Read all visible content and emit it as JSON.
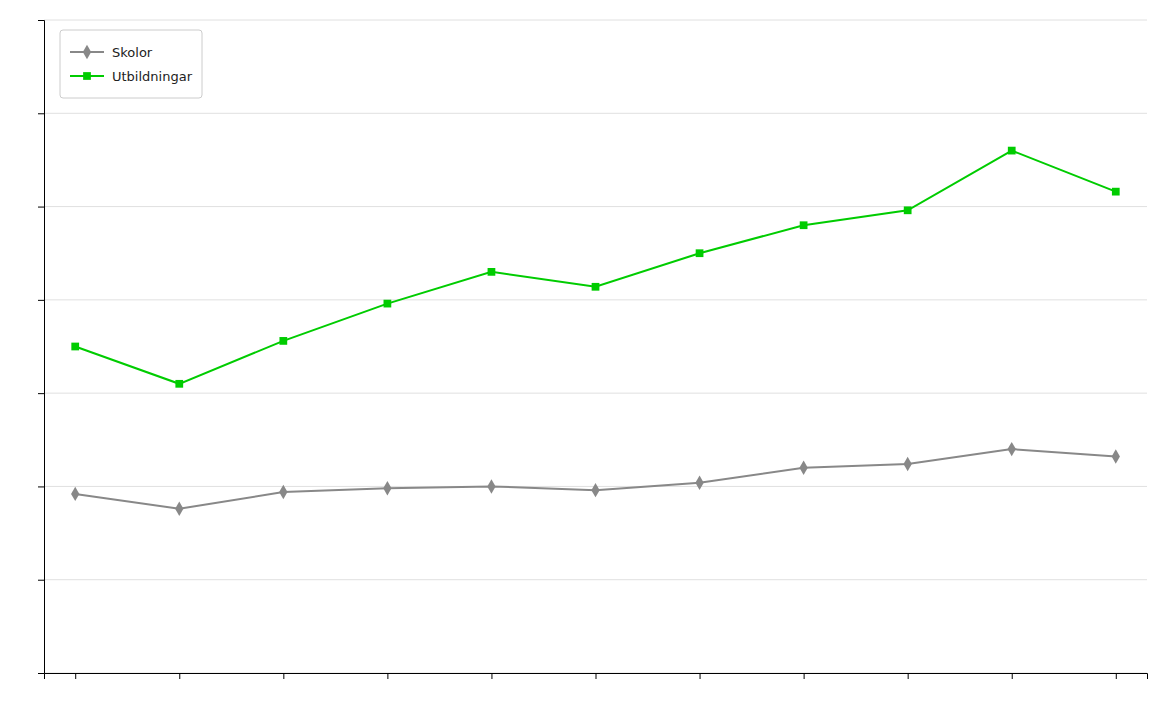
{
  "chart_data": {
    "type": "line",
    "x": [
      0,
      1,
      2,
      3,
      4,
      5,
      6,
      7,
      8,
      9,
      10
    ],
    "xlim": [
      -0.3,
      10.3
    ],
    "xticks": [
      0,
      1,
      2,
      3,
      4,
      5,
      6,
      7,
      8,
      9,
      10
    ],
    "ylim": [
      0,
      350
    ],
    "yticks": [
      0,
      50,
      100,
      150,
      200,
      250,
      300,
      350
    ],
    "grid": true,
    "legend": "upper left",
    "tick_labels": false,
    "series": [
      {
        "name": "Skolor",
        "color": "#888888",
        "marker": "diamond",
        "values": [
          96,
          88,
          97,
          99,
          100,
          98,
          102,
          110,
          112,
          120,
          116
        ]
      },
      {
        "name": "Utbildningar",
        "color": "#00cc00",
        "marker": "square",
        "values": [
          175,
          155,
          178,
          198,
          215,
          207,
          225,
          240,
          248,
          280,
          258
        ]
      }
    ]
  }
}
